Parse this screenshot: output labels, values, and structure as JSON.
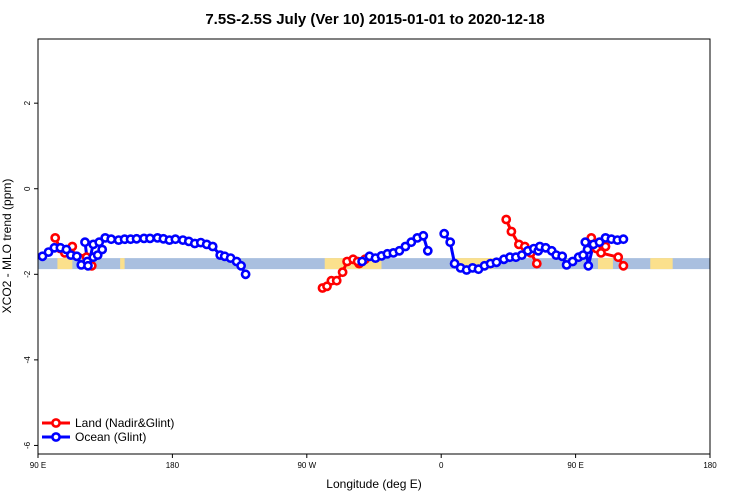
{
  "chart_data": {
    "type": "line",
    "title": "7.5S-2.5S July (Ver 10)   2015-01-01 to 2020-12-18",
    "xlabel": "Longitude (deg E)",
    "ylabel": "XCO2 - MLO trend (ppm)",
    "xlim": [
      90,
      540
    ],
    "ylim": [
      -6.2,
      3.5
    ],
    "x_ticks": [
      {
        "value": 90,
        "label": "90 E"
      },
      {
        "value": 180,
        "label": "180"
      },
      {
        "value": 270,
        "label": "90 W"
      },
      {
        "value": 360,
        "label": "0"
      },
      {
        "value": 450,
        "label": "90 E"
      },
      {
        "value": 540,
        "label": "180"
      }
    ],
    "y_ticks": [
      {
        "value": 2,
        "label": "2"
      },
      {
        "value": 0,
        "label": "0"
      },
      {
        "value": -2,
        "label": "-2"
      },
      {
        "value": -4,
        "label": "-4"
      },
      {
        "value": -6,
        "label": "-6"
      }
    ],
    "baseline_band": {
      "center": -1.75,
      "color": "#a9bfdf",
      "land_color": "#fbe08c"
    },
    "legend": [
      {
        "name": "Land (Nadir&Glint)",
        "color": "#ff0000"
      },
      {
        "name": "Ocean (Glint)",
        "color": "#0000ff"
      }
    ],
    "land_background_ranges": [
      [
        103,
        113
      ],
      [
        145,
        148
      ],
      [
        282,
        320
      ],
      [
        370,
        395
      ],
      [
        465,
        475
      ],
      [
        500,
        515
      ]
    ],
    "series": [
      {
        "name": "Land (Nadir&Glint)",
        "color": "#ff0000",
        "segments": [
          [
            [
              101.5,
              -1.15
            ],
            [
              105,
              -1.4
            ],
            [
              108,
              -1.5
            ],
            [
              111,
              -1.45
            ],
            [
              122.5,
              -1.6
            ],
            [
              126,
              -1.8
            ]
          ],
          [
            [
              113,
              -1.35
            ]
          ],
          [
            [
              280.5,
              -2.32
            ],
            [
              283.5,
              -2.28
            ],
            [
              286.5,
              -2.15
            ],
            [
              290,
              -2.15
            ],
            [
              294,
              -1.95
            ],
            [
              297,
              -1.7
            ],
            [
              301,
              -1.65
            ],
            [
              305,
              -1.75
            ],
            [
              309,
              -1.65
            ]
          ],
          [
            [
              304,
              -1.7
            ]
          ],
          [
            [
              403.5,
              -0.72
            ],
            [
              407,
              -1.0
            ],
            [
              412,
              -1.3
            ],
            [
              416,
              -1.35
            ],
            [
              420,
              -1.5
            ],
            [
              424,
              -1.75
            ]
          ],
          [
            [
              460.5,
              -1.15
            ],
            [
              464,
              -1.4
            ],
            [
              467,
              -1.5
            ],
            [
              478.5,
              -1.6
            ],
            [
              482,
              -1.8
            ]
          ],
          [
            [
              470,
              -1.35
            ]
          ]
        ]
      },
      {
        "name": "Ocean (Glint)",
        "color": "#0000ff",
        "segments": [
          [
            [
              93,
              -1.58
            ],
            [
              97,
              -1.48
            ],
            [
              101,
              -1.38
            ],
            [
              105,
              -1.38
            ],
            [
              109,
              -1.42
            ],
            [
              112,
              -1.55
            ],
            [
              116,
              -1.58
            ],
            [
              119,
              -1.78
            ],
            [
              123,
              -1.7
            ],
            [
              127,
              -1.6
            ],
            [
              130,
              -1.55
            ],
            [
              133,
              -1.42
            ]
          ],
          [
            [
              121.5,
              -1.25
            ],
            [
              123.5,
              -1.8
            ],
            [
              127,
              -1.3
            ],
            [
              131,
              -1.25
            ],
            [
              135,
              -1.15
            ],
            [
              139,
              -1.18
            ],
            [
              144,
              -1.2
            ],
            [
              148,
              -1.18
            ],
            [
              152,
              -1.18
            ],
            [
              156,
              -1.17
            ],
            [
              161,
              -1.16
            ],
            [
              165,
              -1.16
            ],
            [
              170,
              -1.15
            ],
            [
              174,
              -1.17
            ],
            [
              178,
              -1.2
            ],
            [
              182,
              -1.18
            ],
            [
              187,
              -1.2
            ],
            [
              191,
              -1.23
            ],
            [
              195,
              -1.28
            ],
            [
              199,
              -1.26
            ],
            [
              203,
              -1.3
            ],
            [
              207,
              -1.35
            ],
            [
              212,
              -1.55
            ],
            [
              215,
              -1.58
            ],
            [
              219,
              -1.62
            ],
            [
              223,
              -1.7
            ],
            [
              226,
              -1.8
            ],
            [
              229,
              -2.0
            ]
          ],
          [
            [
              307,
              -1.7
            ],
            [
              312,
              -1.58
            ],
            [
              316,
              -1.62
            ],
            [
              320,
              -1.57
            ],
            [
              324,
              -1.52
            ],
            [
              328,
              -1.5
            ],
            [
              332,
              -1.45
            ],
            [
              336,
              -1.35
            ],
            [
              340,
              -1.25
            ],
            [
              344,
              -1.15
            ],
            [
              348,
              -1.1
            ],
            [
              351,
              -1.45
            ]
          ],
          [
            [
              362,
              -1.05
            ],
            [
              366,
              -1.25
            ],
            [
              369,
              -1.75
            ],
            [
              373,
              -1.85
            ],
            [
              377,
              -1.9
            ],
            [
              381,
              -1.85
            ],
            [
              385,
              -1.88
            ],
            [
              389,
              -1.8
            ],
            [
              393,
              -1.75
            ],
            [
              397,
              -1.72
            ],
            [
              402,
              -1.65
            ],
            [
              406,
              -1.6
            ],
            [
              410,
              -1.6
            ],
            [
              414,
              -1.55
            ],
            [
              418,
              -1.45
            ],
            [
              422,
              -1.4
            ],
            [
              425,
              -1.45
            ]
          ],
          [
            [
              426,
              -1.35
            ],
            [
              430,
              -1.38
            ],
            [
              434,
              -1.45
            ],
            [
              437,
              -1.55
            ],
            [
              441,
              -1.58
            ],
            [
              444,
              -1.78
            ],
            [
              448,
              -1.7
            ],
            [
              452,
              -1.6
            ],
            [
              455,
              -1.55
            ],
            [
              458,
              -1.42
            ]
          ],
          [
            [
              456.5,
              -1.25
            ],
            [
              458.5,
              -1.8
            ],
            [
              462,
              -1.3
            ],
            [
              466,
              -1.25
            ],
            [
              470,
              -1.15
            ],
            [
              474,
              -1.18
            ],
            [
              478,
              -1.2
            ],
            [
              482,
              -1.18
            ]
          ]
        ]
      }
    ]
  }
}
